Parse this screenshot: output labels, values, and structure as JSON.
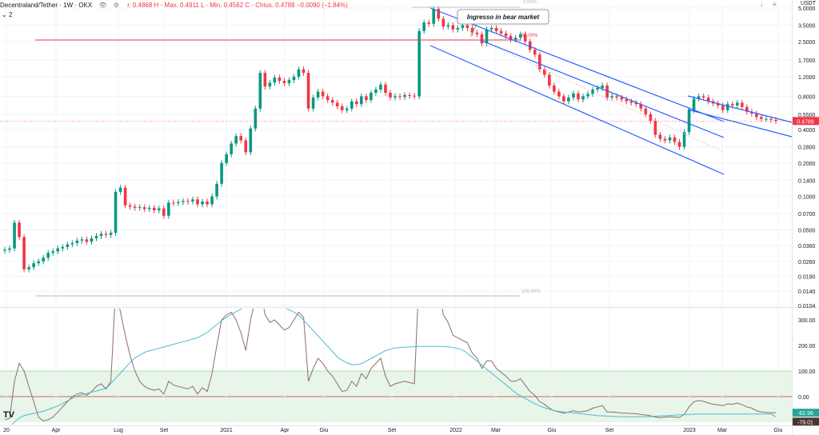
{
  "header": {
    "symbol": "Decentraland/Tether · 1W · OKX",
    "ohlc": "r. 0.4868  H - Max. 0.4911  L - Min. 0.4562  C - Chius. 0.4789  −0.0090 (−1.84%)",
    "collapse_label": "2",
    "currency": "USDT",
    "scale_icon": "arrow-down-icon",
    "menu_icon": "hamburger-icon",
    "eye_icon": "eye-icon",
    "settings_icon": "gear-icon"
  },
  "logo": "TV",
  "colors": {
    "up": "#089981",
    "down": "#f23645",
    "channel": "#2962ff",
    "fib_line": "#f23645",
    "indicator_line_1": "#8d6e63",
    "indicator_line_2": "#4dbad1",
    "band_fill": "#e8f5e9",
    "last_price_bg": "#f23645",
    "ind_label_1_bg": "#26a69a",
    "ind_label_2_bg": "#4e342e"
  },
  "chart_data": {
    "type": "candlestick",
    "price_scale": "log",
    "price_ticks": [
      "5.0000",
      "3.5000",
      "2.5000",
      "1.7000",
      "1.2000",
      "0.8000",
      "0.5500",
      "0.4000",
      "0.2800",
      "0.2000",
      "0.1400",
      "0.1000",
      "0.0700",
      "0.0500",
      "0.0360",
      "0.0260",
      "0.0190",
      "0.0140",
      "0.0104"
    ],
    "price_tick_values": [
      5,
      3.5,
      2.5,
      1.7,
      1.2,
      0.8,
      0.55,
      0.4,
      0.28,
      0.2,
      0.14,
      0.1,
      0.07,
      0.05,
      0.036,
      0.026,
      0.019,
      0.014,
      0.0104
    ],
    "last_price": "0.4789",
    "last_price_value": 0.4789,
    "time_ticks": [
      "20",
      "Apr",
      "Lug",
      "Set",
      "2021",
      "Apr",
      "Giu",
      "Set",
      "2022",
      "Mar",
      "Giu",
      "Set",
      "2023",
      "Mar",
      "Giu"
    ],
    "time_tick_dates": [
      "2020-01-01",
      "2020-04-01",
      "2020-07-01",
      "2020-09-01",
      "2021-01-01",
      "2021-04-01",
      "2021-06-01",
      "2021-09-01",
      "2022-01-01",
      "2022-03-01",
      "2022-06-01",
      "2022-09-01",
      "2023-01-01",
      "2023-03-01",
      "2023-06-01"
    ],
    "closes": [
      0.033,
      0.034,
      0.058,
      0.043,
      0.022,
      0.023,
      0.025,
      0.026,
      0.028,
      0.031,
      0.032,
      0.034,
      0.035,
      0.037,
      0.038,
      0.04,
      0.041,
      0.039,
      0.042,
      0.044,
      0.046,
      0.045,
      0.047,
      0.11,
      0.12,
      0.083,
      0.081,
      0.079,
      0.08,
      0.077,
      0.079,
      0.075,
      0.078,
      0.067,
      0.088,
      0.087,
      0.089,
      0.091,
      0.09,
      0.094,
      0.085,
      0.09,
      0.085,
      0.1,
      0.13,
      0.2,
      0.24,
      0.3,
      0.35,
      0.32,
      0.25,
      0.41,
      0.62,
      1.3,
      0.98,
      1.06,
      1.18,
      1.1,
      1.05,
      1.12,
      1.2,
      1.4,
      1.3,
      0.62,
      0.78,
      0.88,
      0.8,
      0.74,
      0.7,
      0.65,
      0.6,
      0.62,
      0.72,
      0.68,
      0.8,
      0.74,
      0.86,
      0.92,
      1.02,
      0.86,
      0.78,
      0.8,
      0.79,
      0.82,
      0.81,
      0.8,
      3.1,
      3.7,
      3.6,
      4.9,
      4.0,
      3.4,
      3.5,
      3.2,
      3.3,
      3.5,
      3.3,
      3.0,
      2.9,
      2.4,
      3.2,
      3.3,
      3.1,
      2.95,
      2.8,
      2.6,
      2.7,
      2.9,
      2.5,
      2.1,
      1.9,
      1.4,
      1.25,
      1.0,
      0.88,
      0.8,
      0.72,
      0.78,
      0.85,
      0.75,
      0.8,
      0.84,
      0.92,
      0.95,
      1.0,
      0.78,
      0.8,
      0.78,
      0.75,
      0.72,
      0.7,
      0.68,
      0.62,
      0.55,
      0.48,
      0.36,
      0.33,
      0.32,
      0.34,
      0.31,
      0.28,
      0.38,
      0.6,
      0.76,
      0.8,
      0.78,
      0.72,
      0.69,
      0.66,
      0.6,
      0.68,
      0.66,
      0.7,
      0.64,
      0.58,
      0.56,
      0.52,
      0.5,
      0.5,
      0.49,
      0.4789
    ],
    "channel_lines_count": 5,
    "fib_levels": [
      "0.00%",
      "50.00%",
      "100.00%"
    ],
    "annotation": "Ingresso in bear market",
    "indicator_ticks": [
      "300.00",
      "200.00",
      "100.00",
      "0.00"
    ],
    "indicator_tick_values": [
      300,
      200,
      100,
      0
    ],
    "indicator_values": [
      "-62.96",
      "-79.01"
    ],
    "indicator_band": [
      -100,
      100
    ],
    "indicator_line_1": [
      -90,
      -85,
      60,
      130,
      100,
      40,
      -20,
      -80,
      -95,
      -90,
      -80,
      -60,
      -40,
      -20,
      0,
      10,
      15,
      5,
      20,
      40,
      50,
      30,
      60,
      420,
      330,
      240,
      160,
      100,
      60,
      40,
      30,
      25,
      30,
      10,
      60,
      45,
      40,
      35,
      30,
      40,
      10,
      35,
      20,
      90,
      200,
      300,
      320,
      330,
      300,
      250,
      180,
      300,
      380,
      430,
      320,
      290,
      300,
      280,
      260,
      270,
      300,
      330,
      310,
      60,
      110,
      150,
      130,
      100,
      80,
      50,
      20,
      25,
      60,
      40,
      90,
      70,
      110,
      130,
      150,
      80,
      40,
      50,
      55,
      60,
      55,
      50,
      480,
      520,
      500,
      560,
      430,
      320,
      290,
      240,
      230,
      220,
      210,
      170,
      150,
      110,
      140,
      140,
      110,
      95,
      80,
      60,
      60,
      70,
      45,
      20,
      5,
      -20,
      -30,
      -45,
      -55,
      -60,
      -65,
      -60,
      -55,
      -60,
      -58,
      -55,
      -45,
      -40,
      -35,
      -60,
      -60,
      -62,
      -64,
      -65,
      -66,
      -67,
      -70,
      -72,
      -75,
      -80,
      -82,
      -80,
      -79,
      -80,
      -81,
      -70,
      -40,
      -20,
      -15,
      -18,
      -25,
      -30,
      -32,
      -35,
      -28,
      -30,
      -25,
      -32,
      -40,
      -45,
      -55,
      -60,
      -62,
      -63,
      -62.96
    ],
    "indicator_line_2": [
      -140,
      -120,
      -100,
      -85,
      -75,
      -70,
      -66,
      -62,
      -58,
      -52,
      -45,
      -38,
      -30,
      -20,
      -10,
      0,
      5,
      10,
      15,
      20,
      25,
      30,
      40,
      60,
      80,
      100,
      120,
      140,
      155,
      165,
      175,
      180,
      185,
      190,
      195,
      200,
      205,
      210,
      215,
      220,
      225,
      230,
      240,
      250,
      265,
      280,
      295,
      308,
      320,
      330,
      340,
      350,
      358,
      362,
      364,
      363,
      362,
      360,
      355,
      350,
      343,
      335,
      325,
      310,
      290,
      270,
      250,
      230,
      210,
      190,
      170,
      150,
      140,
      130,
      125,
      125,
      130,
      140,
      150,
      160,
      170,
      180,
      185,
      190,
      192,
      193,
      194,
      195,
      196,
      196,
      196,
      196,
      196,
      196,
      195,
      193,
      190,
      185,
      175,
      160,
      145,
      130,
      115,
      100,
      85,
      70,
      55,
      40,
      25,
      10,
      0,
      -10,
      -20,
      -30,
      -38,
      -45,
      -50,
      -55,
      -58,
      -60,
      -62,
      -64,
      -66,
      -68,
      -70,
      -72,
      -74,
      -75,
      -76,
      -77,
      -78,
      -78,
      -79,
      -79,
      -79,
      -79,
      -79,
      -78,
      -77,
      -76,
      -75,
      -74,
      -73,
      -72,
      -71,
      -70,
      -69,
      -68,
      -68,
      -68,
      -68,
      -68,
      -68,
      -68,
      -68,
      -68,
      -68,
      -68,
      -68,
      -68,
      -68,
      -68,
      -68,
      -68,
      -79.01
    ]
  }
}
